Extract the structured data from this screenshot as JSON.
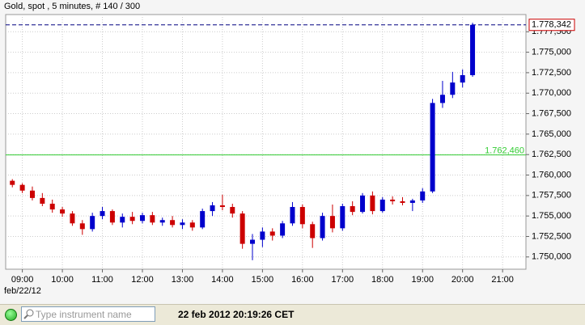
{
  "header": {
    "title": "Gold, spot , 5 minutes, # 140 / 300"
  },
  "chart_data": {
    "type": "candlestick",
    "x": [
      "08:45",
      "09:00",
      "09:15",
      "09:30",
      "09:45",
      "10:00",
      "10:15",
      "10:30",
      "10:45",
      "11:00",
      "11:15",
      "11:30",
      "11:45",
      "12:00",
      "12:15",
      "12:30",
      "12:45",
      "13:00",
      "13:15",
      "13:30",
      "13:45",
      "14:00",
      "14:15",
      "14:30",
      "14:45",
      "15:00",
      "15:15",
      "15:30",
      "15:45",
      "16:00",
      "16:15",
      "16:30",
      "16:45",
      "17:00",
      "17:15",
      "17:30",
      "17:45",
      "18:00",
      "18:15",
      "18:30",
      "18:45",
      "19:00",
      "19:15",
      "19:30",
      "19:45",
      "20:00",
      "20:15"
    ],
    "open": [
      1759.3,
      1758.8,
      1758.1,
      1757.2,
      1756.5,
      1755.8,
      1755.3,
      1754.1,
      1753.4,
      1755.0,
      1755.6,
      1754.2,
      1754.9,
      1754.4,
      1755.1,
      1754.2,
      1754.5,
      1753.9,
      1754.2,
      1753.6,
      1755.6,
      1756.3,
      1756.1,
      1755.3,
      1751.6,
      1752.1,
      1753.1,
      1752.6,
      1754.1,
      1756.1,
      1754.0,
      1752.3,
      1755.0,
      1753.5,
      1756.2,
      1755.5,
      1757.5,
      1755.6,
      1757.0,
      1756.8,
      1756.6,
      1756.9,
      1758.0,
      1768.8,
      1769.8,
      1771.3,
      1772.2
    ],
    "high": [
      1759.5,
      1759.0,
      1758.6,
      1757.8,
      1757.0,
      1756.1,
      1755.6,
      1754.5,
      1755.4,
      1756.1,
      1755.8,
      1755.3,
      1755.5,
      1755.4,
      1755.5,
      1754.8,
      1755.0,
      1754.6,
      1754.5,
      1755.9,
      1756.7,
      1757.6,
      1756.5,
      1755.6,
      1752.8,
      1753.6,
      1753.5,
      1754.4,
      1756.7,
      1756.4,
      1754.3,
      1755.4,
      1756.4,
      1756.5,
      1756.8,
      1757.8,
      1758.0,
      1757.3,
      1757.4,
      1757.3,
      1757.1,
      1758.4,
      1769.3,
      1771.5,
      1772.6,
      1772.9,
      1778.6
    ],
    "low": [
      1758.5,
      1757.8,
      1756.9,
      1756.2,
      1755.4,
      1754.9,
      1753.8,
      1752.7,
      1753.1,
      1754.6,
      1753.9,
      1753.6,
      1754.0,
      1754.1,
      1753.9,
      1753.8,
      1753.6,
      1753.4,
      1753.2,
      1753.4,
      1755.0,
      1755.7,
      1754.8,
      1751.0,
      1749.6,
      1751.2,
      1752.0,
      1752.3,
      1753.8,
      1753.5,
      1751.1,
      1752.0,
      1753.0,
      1753.2,
      1755.1,
      1755.3,
      1755.2,
      1755.4,
      1756.4,
      1756.3,
      1755.6,
      1756.6,
      1757.8,
      1768.2,
      1769.4,
      1770.7,
      1772.0
    ],
    "close": [
      1758.8,
      1758.1,
      1757.2,
      1756.5,
      1755.8,
      1755.3,
      1754.1,
      1753.4,
      1755.0,
      1755.6,
      1754.2,
      1754.9,
      1754.4,
      1755.1,
      1754.2,
      1754.5,
      1753.9,
      1754.2,
      1753.6,
      1755.6,
      1756.3,
      1756.1,
      1755.3,
      1751.6,
      1752.1,
      1753.1,
      1752.6,
      1754.1,
      1756.1,
      1754.0,
      1752.3,
      1755.0,
      1753.5,
      1756.2,
      1755.5,
      1757.5,
      1755.6,
      1757.0,
      1756.8,
      1756.6,
      1756.9,
      1758.0,
      1768.8,
      1769.8,
      1771.3,
      1772.2,
      1778.342
    ],
    "up_color": "#0000cc",
    "down_color": "#cc0000",
    "xlim": [
      "08:35",
      "21:35"
    ],
    "xticks": [
      "09:00",
      "10:00",
      "11:00",
      "12:00",
      "13:00",
      "14:00",
      "15:00",
      "16:00",
      "17:00",
      "18:00",
      "19:00",
      "20:00",
      "21:00"
    ],
    "ylim": [
      1748.5,
      1779.6
    ],
    "yticks": [
      {
        "value": 1750,
        "label": "1.750,000"
      },
      {
        "value": 1752.5,
        "label": "1.752,500"
      },
      {
        "value": 1755,
        "label": "1.755,000"
      },
      {
        "value": 1757.5,
        "label": "1.757,500"
      },
      {
        "value": 1760,
        "label": "1.760,000"
      },
      {
        "value": 1762.5,
        "label": "1.762,500"
      },
      {
        "value": 1765,
        "label": "1.765,000"
      },
      {
        "value": 1767.5,
        "label": "1.767,500"
      },
      {
        "value": 1770,
        "label": "1.770,000"
      },
      {
        "value": 1772.5,
        "label": "1.772,500"
      },
      {
        "value": 1775,
        "label": "1.775,000"
      },
      {
        "value": 1777.5,
        "label": "1.777,500"
      }
    ],
    "grid": true,
    "current_price": {
      "value": 1778.342,
      "label": "1.778,342",
      "color": "#000080"
    },
    "level_line": {
      "value": 1762.46,
      "label": "1.762,460",
      "color": "#33cc33"
    },
    "date_label": "feb/22/12"
  },
  "status_bar": {
    "search_placeholder": "Type instrument name",
    "timestamp": "22 feb 2012 20:19:26 CET"
  }
}
